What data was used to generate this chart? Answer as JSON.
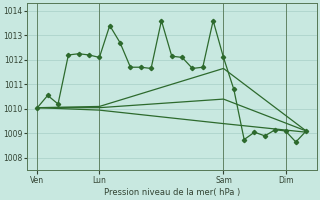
{
  "background_color": "#c8e8e0",
  "grid_color": "#a0c8c0",
  "line_color": "#2d6a2d",
  "title": "Pression niveau de la mer( hPa )",
  "ylim": [
    1007.5,
    1014.3
  ],
  "yticks": [
    1008,
    1009,
    1010,
    1011,
    1012,
    1013,
    1014
  ],
  "xlim": [
    0,
    28
  ],
  "day_positions": [
    1,
    7,
    19,
    25
  ],
  "day_labels": [
    "Ven",
    "Lun",
    "Sam",
    "Dim"
  ],
  "vline_positions": [
    1,
    7,
    19,
    25
  ],
  "line1_x": [
    1,
    2,
    3,
    4,
    5,
    6,
    7,
    8,
    9,
    10,
    11,
    12,
    13,
    14,
    15,
    16,
    17,
    18,
    19,
    20,
    21,
    22,
    23,
    24,
    25,
    26,
    27
  ],
  "line1_y": [
    1010.05,
    1010.55,
    1010.2,
    1012.2,
    1012.25,
    1012.2,
    1012.1,
    1013.4,
    1012.7,
    1011.7,
    1011.7,
    1011.65,
    1013.6,
    1012.15,
    1012.1,
    1011.65,
    1011.7,
    1013.6,
    1012.1,
    1010.8,
    1008.75,
    1009.05,
    1008.9,
    1009.15,
    1009.1,
    1008.65,
    1009.1
  ],
  "line2_x": [
    1,
    7,
    19,
    27
  ],
  "line2_y": [
    1010.05,
    1010.1,
    1011.65,
    1009.1
  ],
  "line3_x": [
    1,
    7,
    19,
    27
  ],
  "line3_y": [
    1010.05,
    1010.05,
    1010.4,
    1009.1
  ],
  "line4_x": [
    1,
    7,
    19,
    27
  ],
  "line4_y": [
    1010.05,
    1009.95,
    1009.4,
    1009.05
  ]
}
